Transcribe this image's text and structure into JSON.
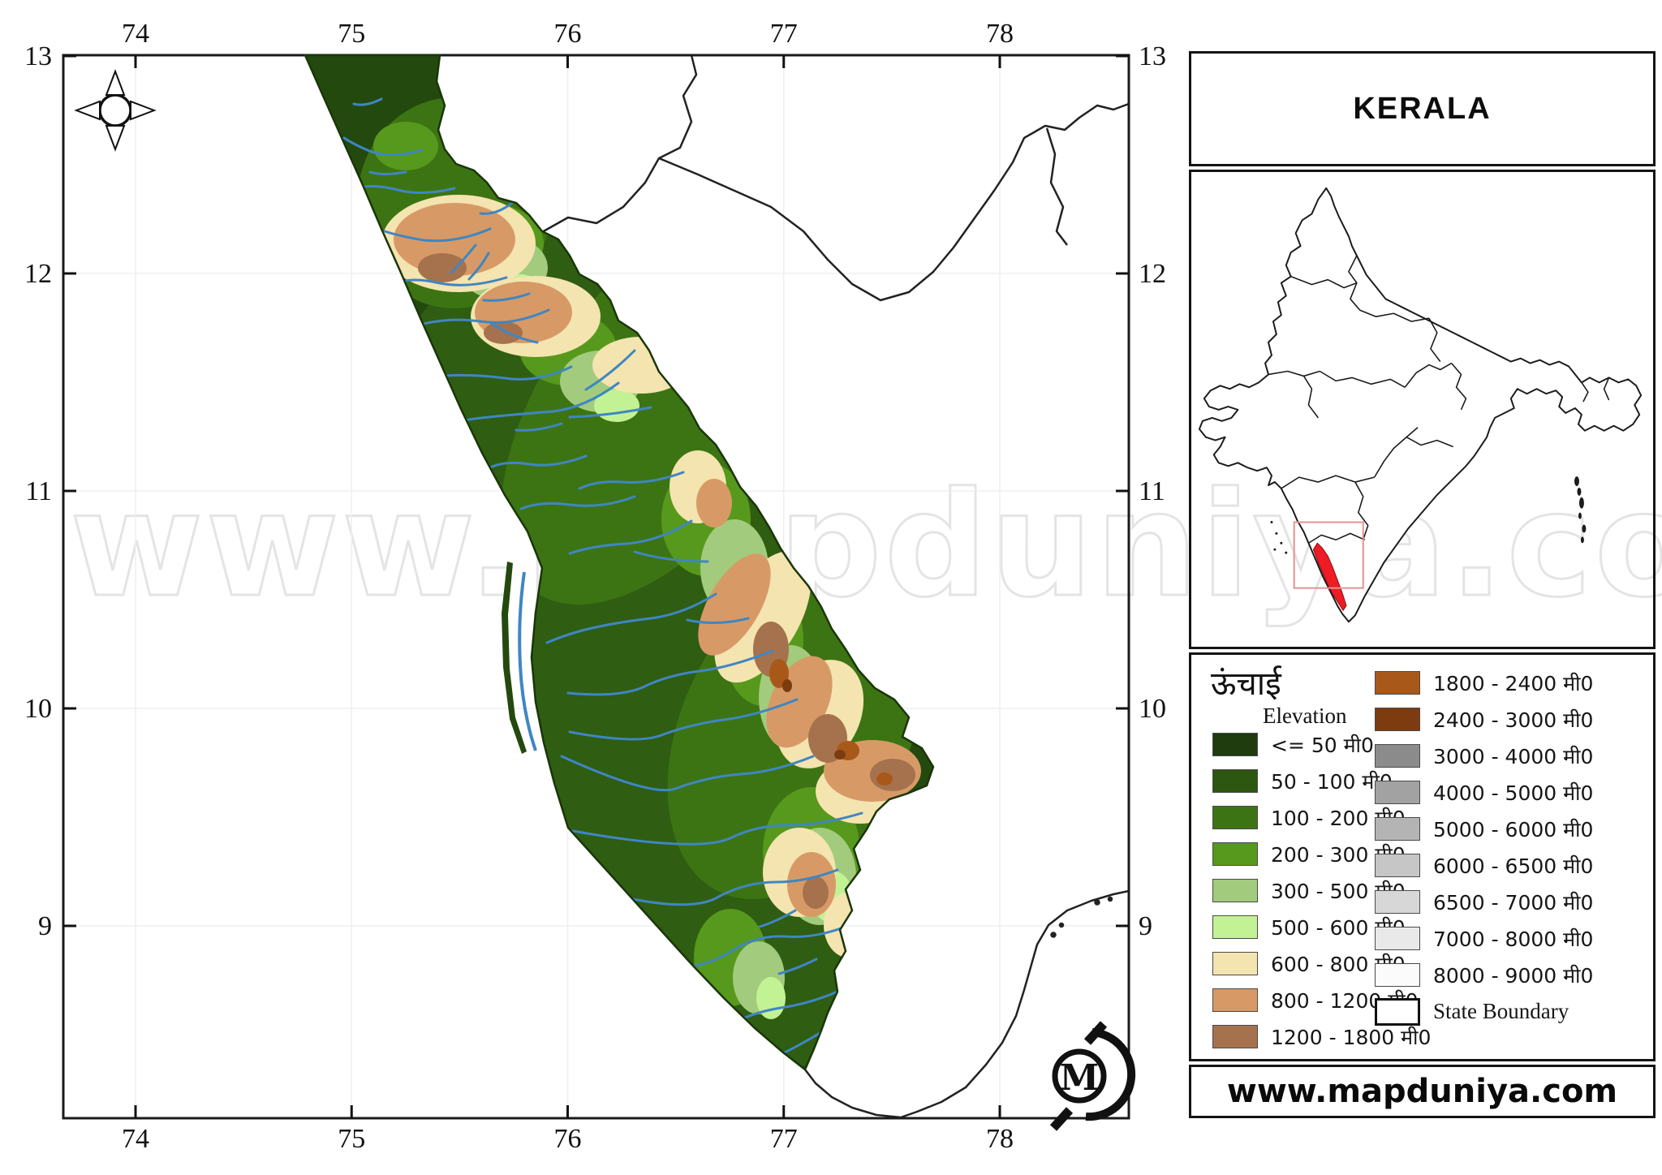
{
  "main_map": {
    "x_axis_ticks": [
      "74",
      "75",
      "76",
      "77",
      "78"
    ],
    "y_axis_ticks": [
      "13",
      "12",
      "11",
      "10",
      "9"
    ],
    "watermark": "www.mapduniya.com"
  },
  "panel": {
    "title": "KERALA",
    "inset": {
      "region_highlighted": "Kerala",
      "highlight_color": "#ee1c25"
    },
    "legend": {
      "title_hindi": "ऊंचाई",
      "title_english": "Elevation",
      "left_items": [
        {
          "label": "<= 50 मी0",
          "color": "#1e3c0e"
        },
        {
          "label": "50 - 100 मी0",
          "color": "#2d5611"
        },
        {
          "label": "100 - 200 मी0",
          "color": "#3d7413"
        },
        {
          "label": "200 - 300 मी0",
          "color": "#57991c"
        },
        {
          "label": "300 - 500 मी0",
          "color": "#a2cb7d"
        },
        {
          "label": "500 - 600 मी0",
          "color": "#c3f295"
        },
        {
          "label": "600 - 800 मी0",
          "color": "#f4e4af"
        },
        {
          "label": "800 - 1200 मी0",
          "color": "#d79a66"
        },
        {
          "label": "1200 - 1800 मी0",
          "color": "#a5724d"
        }
      ],
      "right_items": [
        {
          "label": "1800 - 2400 मी0",
          "color": "#a85818"
        },
        {
          "label": "2400 - 3000 मी0",
          "color": "#7c3c10"
        },
        {
          "label": "3000 - 4000 मी0",
          "color": "#8b8b8b"
        },
        {
          "label": "4000 - 5000 मी0",
          "color": "#a2a2a2"
        },
        {
          "label": "5000 - 6000 मी0",
          "color": "#b4b4b4"
        },
        {
          "label": "6000 - 6500 मी0",
          "color": "#c6c6c6"
        },
        {
          "label": "6500 - 7000 मी0",
          "color": "#d7d7d7"
        },
        {
          "label": "7000 - 8000 मी0",
          "color": "#e9e9e9"
        },
        {
          "label": "8000 - 9000 मी0",
          "color": "#fbfbfb"
        },
        {
          "label": "State Boundary",
          "boundary": true
        }
      ]
    },
    "website": "www.mapduniya.com"
  },
  "colors": {
    "river": "#3f86c4",
    "land_base": "#24490f",
    "boundary_line": "#222222"
  }
}
